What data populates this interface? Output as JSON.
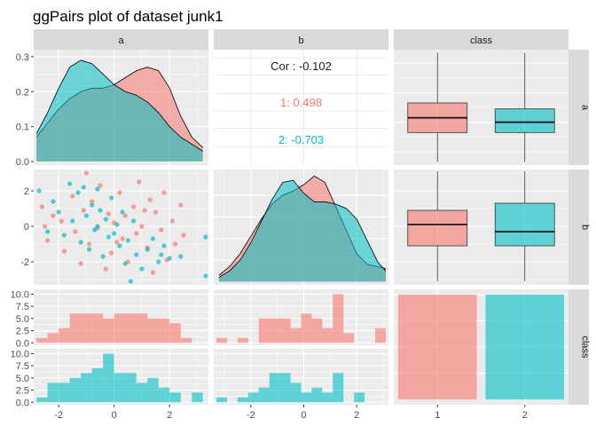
{
  "title": "ggPairs plot of dataset junk1",
  "variables": [
    "a",
    "b",
    "class"
  ],
  "colors": {
    "class1": "#F8766D",
    "class2": "#00BFC4",
    "panel_bg": "#EBEBEB",
    "strip_bg": "#D9D9D9",
    "grid": "#FFFFFF"
  },
  "chart_data": {
    "type": "pairs",
    "title": "ggPairs plot of dataset junk1",
    "group_var": "class",
    "group_levels": [
      "1",
      "2"
    ],
    "correlation": {
      "overall": "Cor : -0.102",
      "groups": [
        "1: 0.498",
        "2: -0.703"
      ]
    },
    "density_a": {
      "xlim": [
        -2.9,
        3.4
      ],
      "ylim": [
        -0.01,
        0.32
      ],
      "y_ticks": [
        "0.0",
        "0.1",
        "0.2",
        "0.3"
      ],
      "x": [
        -2.8,
        -2.4,
        -2.0,
        -1.6,
        -1.2,
        -0.8,
        -0.4,
        0.0,
        0.4,
        0.8,
        1.2,
        1.6,
        2.0,
        2.4,
        2.8,
        3.2
      ],
      "group1": [
        0.07,
        0.11,
        0.15,
        0.18,
        0.2,
        0.21,
        0.21,
        0.22,
        0.24,
        0.26,
        0.27,
        0.26,
        0.21,
        0.13,
        0.07,
        0.04
      ],
      "group2": [
        0.08,
        0.14,
        0.21,
        0.27,
        0.29,
        0.28,
        0.25,
        0.22,
        0.2,
        0.19,
        0.17,
        0.14,
        0.1,
        0.07,
        0.05,
        0.03
      ]
    },
    "density_b": {
      "xlim": [
        -3.4,
        3.2
      ],
      "x": [
        -3.2,
        -2.8,
        -2.4,
        -2.0,
        -1.6,
        -1.2,
        -0.8,
        -0.4,
        0.0,
        0.4,
        0.8,
        1.2,
        1.6,
        2.0,
        2.4,
        2.8,
        3.1
      ],
      "group1": [
        0.03,
        0.07,
        0.13,
        0.21,
        0.29,
        0.36,
        0.4,
        0.42,
        0.45,
        0.49,
        0.46,
        0.35,
        0.24,
        0.13,
        0.08,
        0.07,
        0.06
      ],
      "group2": [
        0.02,
        0.05,
        0.1,
        0.18,
        0.28,
        0.38,
        0.46,
        0.47,
        0.41,
        0.37,
        0.37,
        0.36,
        0.34,
        0.29,
        0.19,
        0.09,
        0.05
      ]
    },
    "scatter_ab": {
      "xlim": [
        -2.9,
        3.4
      ],
      "ylim": [
        -3.3,
        3.2
      ],
      "y_ticks": [
        "-2",
        "0",
        "2"
      ],
      "group1": [
        [
          -2.6,
          1.1
        ],
        [
          -2.5,
          0.0
        ],
        [
          -2.4,
          -0.8
        ],
        [
          -2.2,
          0.6
        ],
        [
          -1.9,
          0.3
        ],
        [
          -1.8,
          -1.4
        ],
        [
          -1.5,
          1.7
        ],
        [
          -1.4,
          -0.3
        ],
        [
          -1.2,
          -2.1
        ],
        [
          -1.1,
          0.9
        ],
        [
          -1.0,
          3.0
        ],
        [
          -0.9,
          -1.0
        ],
        [
          -0.8,
          1.4
        ],
        [
          -0.6,
          -0.1
        ],
        [
          -0.5,
          2.3
        ],
        [
          -0.3,
          -2.4
        ],
        [
          -0.2,
          0.7
        ],
        [
          -0.1,
          -1.5
        ],
        [
          0.0,
          0.2
        ],
        [
          0.2,
          1.9
        ],
        [
          0.3,
          -0.7
        ],
        [
          0.4,
          0.6
        ],
        [
          0.5,
          -2.0
        ],
        [
          0.7,
          1.1
        ],
        [
          0.8,
          -0.4
        ],
        [
          0.9,
          2.5
        ],
        [
          1.0,
          0.0
        ],
        [
          1.2,
          -1.2
        ],
        [
          1.3,
          1.5
        ],
        [
          1.4,
          -2.6
        ],
        [
          1.5,
          0.8
        ],
        [
          1.7,
          -0.2
        ],
        [
          1.8,
          1.9
        ],
        [
          1.9,
          -1.9
        ],
        [
          2.1,
          0.3
        ],
        [
          2.2,
          -1.0
        ],
        [
          2.4,
          1.2
        ],
        [
          2.5,
          -0.5
        ],
        [
          1.1,
          0.9
        ],
        [
          0.1,
          -0.9
        ]
      ],
      "group2": [
        [
          -2.7,
          2.0
        ],
        [
          -2.4,
          -0.3
        ],
        [
          -2.2,
          1.4
        ],
        [
          -2.0,
          0.8
        ],
        [
          -1.8,
          -0.5
        ],
        [
          -1.6,
          2.4
        ],
        [
          -1.5,
          0.3
        ],
        [
          -1.3,
          1.9
        ],
        [
          -1.2,
          -0.9
        ],
        [
          -1.1,
          2.2
        ],
        [
          -1.0,
          0.6
        ],
        [
          -0.9,
          -1.3
        ],
        [
          -0.8,
          1.2
        ],
        [
          -0.7,
          -0.2
        ],
        [
          -0.6,
          2.1
        ],
        [
          -0.5,
          0.9
        ],
        [
          -0.4,
          -1.7
        ],
        [
          -0.3,
          0.4
        ],
        [
          -0.2,
          -0.6
        ],
        [
          -0.1,
          1.6
        ],
        [
          0.0,
          -0.4
        ],
        [
          0.1,
          0.1
        ],
        [
          0.2,
          -1.1
        ],
        [
          0.3,
          0.8
        ],
        [
          0.4,
          -2.1
        ],
        [
          0.5,
          -0.8
        ],
        [
          0.6,
          -3.1
        ],
        [
          0.8,
          -1.6
        ],
        [
          1.0,
          -2.4
        ],
        [
          1.2,
          -1.3
        ],
        [
          1.4,
          -0.7
        ],
        [
          1.6,
          -2.0
        ],
        [
          1.8,
          -1.1
        ],
        [
          2.0,
          -1.8
        ],
        [
          2.4,
          -1.7
        ],
        [
          3.3,
          -2.8
        ],
        [
          3.3,
          -0.6
        ],
        [
          -0.6,
          0.0
        ],
        [
          0.7,
          0.3
        ],
        [
          1.7,
          -1.6
        ]
      ]
    },
    "boxplot_a": {
      "categories": [
        "1",
        "2"
      ],
      "group1": {
        "min": -2.7,
        "q1": -0.7,
        "median": 0.3,
        "q3": 1.3,
        "max": 4.7
      },
      "group2": {
        "min": -2.7,
        "q1": -0.7,
        "median": 0.0,
        "q3": 0.9,
        "max": 4.7
      }
    },
    "boxplot_b": {
      "group1": {
        "min": -3.1,
        "q1": -1.1,
        "median": 0.1,
        "q3": 0.9,
        "max": 3.1
      },
      "group2": {
        "min": -3.1,
        "q1": -1.1,
        "median": -0.3,
        "q3": 1.3,
        "max": 3.1
      }
    },
    "bar_class": {
      "categories": [
        "1",
        "2"
      ],
      "values": [
        40,
        40
      ],
      "ylim": [
        0,
        42
      ]
    },
    "histogram_a": {
      "count_ticks": [
        "0.0",
        "2.5",
        "5.0",
        "7.5",
        "10.0"
      ],
      "x_ticks": [
        "-2",
        "0",
        "2"
      ],
      "bin_edges": [
        -2.8,
        -2.4,
        -2.0,
        -1.6,
        -1.2,
        -0.8,
        -0.4,
        0.0,
        0.4,
        0.8,
        1.2,
        1.6,
        2.0,
        2.4,
        2.8,
        3.2
      ],
      "group1": [
        1,
        2,
        3,
        6,
        6,
        6,
        5,
        6,
        6,
        6,
        5,
        5,
        4,
        1,
        0
      ],
      "group2": [
        1,
        4,
        4,
        5,
        6,
        7,
        10,
        6,
        6,
        4,
        5,
        3,
        2,
        0,
        2
      ]
    },
    "histogram_b": {
      "x_ticks": [
        "-2",
        "0",
        "2"
      ],
      "bin_edges": [
        -3.3,
        -2.9,
        -2.5,
        -2.1,
        -1.7,
        -1.3,
        -0.9,
        -0.5,
        -0.1,
        0.3,
        0.7,
        1.1,
        1.5,
        1.9,
        2.3,
        2.7,
        3.1
      ],
      "group1": [
        1,
        0,
        1,
        0,
        5,
        5,
        5,
        3,
        6,
        5,
        3,
        10,
        2,
        0,
        0,
        3
      ],
      "group2": [
        1,
        0,
        1,
        2,
        3,
        6,
        6,
        4,
        2,
        3,
        2,
        6,
        0,
        2,
        0,
        0
      ]
    },
    "x_ticks_a": [
      "-2",
      "0",
      "2"
    ],
    "x_ticks_class": [
      "1",
      "2"
    ]
  }
}
